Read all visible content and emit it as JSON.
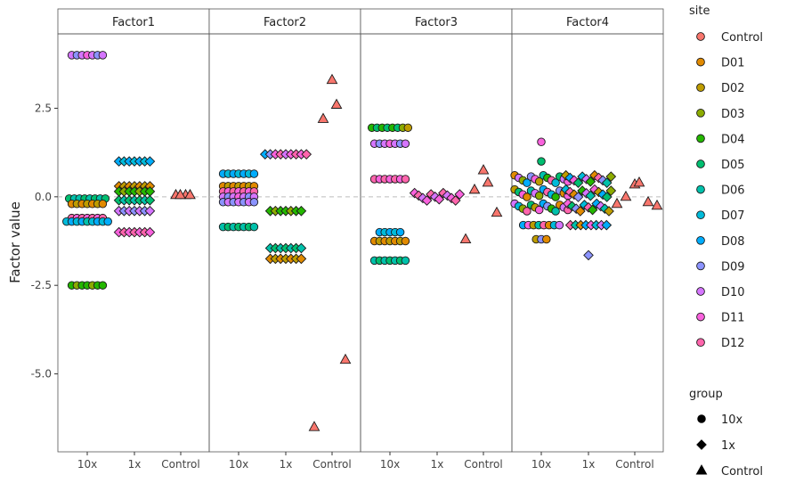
{
  "chart_data": {
    "type": "scatter",
    "ylabel": "Factor value",
    "ylim": [
      -7.2,
      4.6
    ],
    "y_ticks": [
      "2.5",
      "0.0",
      "-2.5",
      "-5.0"
    ],
    "y_tick_values": [
      2.5,
      0.0,
      -2.5,
      -5.0
    ],
    "x_categories": [
      "10x",
      "1x",
      "Control"
    ],
    "facets": [
      "Factor1",
      "Factor2",
      "Factor3",
      "Factor4"
    ],
    "reference_line_y": 0,
    "grid": false,
    "legend_position": "right",
    "legend_site": {
      "title": "site",
      "items": [
        {
          "label": "Control",
          "color": "#F8766D"
        },
        {
          "label": "D01",
          "color": "#E18A00"
        },
        {
          "label": "D02",
          "color": "#BE9C00"
        },
        {
          "label": "D03",
          "color": "#8CAB00"
        },
        {
          "label": "D04",
          "color": "#24B700"
        },
        {
          "label": "D05",
          "color": "#00BE70"
        },
        {
          "label": "D06",
          "color": "#00C1AB"
        },
        {
          "label": "D07",
          "color": "#00BBDA"
        },
        {
          "label": "D08",
          "color": "#00ACFC"
        },
        {
          "label": "D09",
          "color": "#8B93FF"
        },
        {
          "label": "D10",
          "color": "#D575FE"
        },
        {
          "label": "D11",
          "color": "#F962DD"
        },
        {
          "label": "D12",
          "color": "#FF65AC"
        }
      ]
    },
    "legend_group": {
      "title": "group",
      "items": [
        {
          "label": "10x",
          "shape": "circle"
        },
        {
          "label": "1x",
          "shape": "diamond"
        },
        {
          "label": "Control",
          "shape": "triangle"
        }
      ]
    },
    "panels": [
      {
        "factor": "Factor1",
        "clusters": [
          {
            "group": "10x",
            "y": 4.0,
            "sites": [
              "D10",
              "D09",
              "D10",
              "D11",
              "D10",
              "D09",
              "D10"
            ]
          },
          {
            "group": "10x",
            "y": -0.05,
            "sites": [
              "D05",
              "D06",
              "D06",
              "D05",
              "D06",
              "D05",
              "D06",
              "D05"
            ]
          },
          {
            "group": "10x",
            "y": -0.2,
            "sites": [
              "D01",
              "D02",
              "D01",
              "D02",
              "D01",
              "D02",
              "D01"
            ]
          },
          {
            "group": "10x",
            "y": -0.6,
            "sites": [
              "D12",
              "D11",
              "D12",
              "D11",
              "D12",
              "D11",
              "D12"
            ]
          },
          {
            "group": "10x",
            "y": -0.7,
            "sites": [
              "D07",
              "D08",
              "D07",
              "D08",
              "D06",
              "D07",
              "D08",
              "D07",
              "D08"
            ]
          },
          {
            "group": "10x",
            "y": -2.5,
            "sites": [
              "D04",
              "D03",
              "D04",
              "D04",
              "D03",
              "D04",
              "D04"
            ]
          },
          {
            "group": "1x",
            "y": 1.0,
            "sites": [
              "D08",
              "D07",
              "D08",
              "D07",
              "D08",
              "D07",
              "D08"
            ]
          },
          {
            "group": "1x",
            "y": 0.3,
            "sites": [
              "D01",
              "D02",
              "D01",
              "D02",
              "D01",
              "D02",
              "D01"
            ]
          },
          {
            "group": "1x",
            "y": 0.15,
            "sites": [
              "D04",
              "D03",
              "D04",
              "D04",
              "D03",
              "D04",
              "D04"
            ]
          },
          {
            "group": "1x",
            "y": -0.1,
            "sites": [
              "D05",
              "D06",
              "D05",
              "D06",
              "D05",
              "D06",
              "D05"
            ]
          },
          {
            "group": "1x",
            "y": -0.4,
            "sites": [
              "D10",
              "D09",
              "D10",
              "D09",
              "D10",
              "D09",
              "D10"
            ]
          },
          {
            "group": "1x",
            "y": -1.0,
            "sites": [
              "D11",
              "D12",
              "D11",
              "D12",
              "D11",
              "D12",
              "D11"
            ]
          },
          {
            "group": "Control",
            "y": 0.05,
            "sites": [
              "Control",
              "Control"
            ]
          },
          {
            "group": "Control",
            "y": 0.05,
            "sites": [
              "Control",
              "Control"
            ]
          }
        ]
      },
      {
        "factor": "Factor2",
        "clusters": [
          {
            "group": "10x",
            "y": 0.65,
            "sites": [
              "D08",
              "D07",
              "D08",
              "D07",
              "D08",
              "D07",
              "D08"
            ]
          },
          {
            "group": "10x",
            "y": 0.3,
            "sites": [
              "D01",
              "D02",
              "D01",
              "D02",
              "D01",
              "D02",
              "D01"
            ]
          },
          {
            "group": "10x",
            "y": 0.15,
            "sites": [
              "D12",
              "D11",
              "D12",
              "D11",
              "D12",
              "D11",
              "D12"
            ]
          },
          {
            "group": "10x",
            "y": 0.0,
            "sites": [
              "D10",
              "D09",
              "D10",
              "D11",
              "D10",
              "D09",
              "D10"
            ]
          },
          {
            "group": "10x",
            "y": -0.15,
            "sites": [
              "D09",
              "D10",
              "D09",
              "D10",
              "D09",
              "D10",
              "D09"
            ]
          },
          {
            "group": "10x",
            "y": -0.85,
            "sites": [
              "D06",
              "D05",
              "D06",
              "D05",
              "D06",
              "D05",
              "D06"
            ]
          },
          {
            "group": "1x",
            "y": 1.2,
            "sites": [
              "D08",
              "D09",
              "D11",
              "D12",
              "D10",
              "D11",
              "D12",
              "D11",
              "D12"
            ]
          },
          {
            "group": "1x",
            "y": -0.4,
            "sites": [
              "D04",
              "D03",
              "D04",
              "D04",
              "D03",
              "D04",
              "D04"
            ]
          },
          {
            "group": "1x",
            "y": -1.45,
            "sites": [
              "D06",
              "D05",
              "D06",
              "D05",
              "D06",
              "D05",
              "D06"
            ]
          },
          {
            "group": "1x",
            "y": -1.75,
            "sites": [
              "D01",
              "D02",
              "D01",
              "D02",
              "D01",
              "D02",
              "D01"
            ]
          },
          {
            "group": "Control",
            "y": 3.3,
            "sites": [
              "Control"
            ]
          },
          {
            "group": "Control",
            "y": 2.6,
            "sites": [
              "Control"
            ]
          },
          {
            "group": "Control",
            "y": 2.2,
            "sites": [
              "Control"
            ]
          },
          {
            "group": "Control",
            "y": -4.6,
            "sites": [
              "Control"
            ]
          },
          {
            "group": "Control",
            "y": -6.5,
            "sites": [
              "Control"
            ]
          }
        ]
      },
      {
        "factor": "Factor3",
        "clusters": [
          {
            "group": "10x",
            "y": 1.95,
            "sites": [
              "D04",
              "D05",
              "D04",
              "D05",
              "D04",
              "D05",
              "D03",
              "D02"
            ]
          },
          {
            "group": "10x",
            "y": 1.5,
            "sites": [
              "D10",
              "D09",
              "D10",
              "D11",
              "D10",
              "D09",
              "D10"
            ]
          },
          {
            "group": "10x",
            "y": 0.5,
            "sites": [
              "D12",
              "D11",
              "D12",
              "D11",
              "D12",
              "D11",
              "D12"
            ]
          },
          {
            "group": "10x",
            "y": -1.0,
            "sites": [
              "D08",
              "D07",
              "D08",
              "D07",
              "D08"
            ]
          },
          {
            "group": "10x",
            "y": -1.25,
            "sites": [
              "D01",
              "D02",
              "D01",
              "D02",
              "D01",
              "D02",
              "D01"
            ]
          },
          {
            "group": "10x",
            "y": -1.8,
            "sites": [
              "D06",
              "D05",
              "D06",
              "D05",
              "D06",
              "D05",
              "D06"
            ]
          },
          {
            "group": "1x",
            "y": 0.0,
            "sites": [
              "D11",
              "D12",
              "D10",
              "D11",
              "D12",
              "D10",
              "D11",
              "D12",
              "D10",
              "D11",
              "D12",
              "D11"
            ]
          },
          {
            "group": "Control",
            "y": 0.75,
            "sites": [
              "Control"
            ]
          },
          {
            "group": "Control",
            "y": 0.4,
            "sites": [
              "Control"
            ]
          },
          {
            "group": "Control",
            "y": 0.2,
            "sites": [
              "Control"
            ]
          },
          {
            "group": "Control",
            "y": -0.45,
            "sites": [
              "Control"
            ]
          },
          {
            "group": "Control",
            "y": -1.2,
            "sites": [
              "Control"
            ]
          }
        ]
      },
      {
        "factor": "Factor4",
        "clusters": [
          {
            "group": "10x",
            "y": 1.55,
            "sites": [
              "D11"
            ]
          },
          {
            "group": "10x",
            "y": 1.0,
            "sites": [
              "D05"
            ]
          },
          {
            "group": "10x",
            "y": 0.5,
            "sites": [
              "D01",
              "D10",
              "D03",
              "D08",
              "D09",
              "D11",
              "D02",
              "D06",
              "D04",
              "D12",
              "D07",
              "D05",
              "D10",
              "D11"
            ]
          },
          {
            "group": "10x",
            "y": 0.1,
            "sites": [
              "D02",
              "D05",
              "D11",
              "D01",
              "D06",
              "D10",
              "D03",
              "D08",
              "D12",
              "D07",
              "D04",
              "D09",
              "D01",
              "D11"
            ]
          },
          {
            "group": "10x",
            "y": -0.3,
            "sites": [
              "D10",
              "D07",
              "D03",
              "D12",
              "D05",
              "D02",
              "D11",
              "D08",
              "D09",
              "D04",
              "D06",
              "D01",
              "D10",
              "D12"
            ]
          },
          {
            "group": "10x",
            "y": -0.8,
            "sites": [
              "D08",
              "D11",
              "D02",
              "D06",
              "D12",
              "D01",
              "D07",
              "D10"
            ]
          },
          {
            "group": "10x",
            "y": -1.2,
            "sites": [
              "D02",
              "D09",
              "D01"
            ]
          },
          {
            "group": "1x",
            "y": 0.5,
            "sites": [
              "D02",
              "D08",
              "D11",
              "D05",
              "D07",
              "D10",
              "D04",
              "D01",
              "D12",
              "D09",
              "D06",
              "D03"
            ]
          },
          {
            "group": "1x",
            "y": 0.1,
            "sites": [
              "D07",
              "D12",
              "D01",
              "D09",
              "D04",
              "D10",
              "D06",
              "D11",
              "D02",
              "D08",
              "D05",
              "D03"
            ]
          },
          {
            "group": "1x",
            "y": -0.3,
            "sites": [
              "D11",
              "D05",
              "D09",
              "D01",
              "D07",
              "D12",
              "D04",
              "D08",
              "D10",
              "D06",
              "D02"
            ]
          },
          {
            "group": "1x",
            "y": -0.8,
            "sites": [
              "D12",
              "D06",
              "D01",
              "D08",
              "D11",
              "D07",
              "D10",
              "D08"
            ]
          },
          {
            "group": "1x",
            "y": -1.65,
            "sites": [
              "D09"
            ]
          },
          {
            "group": "Control",
            "y": 0.35,
            "sites": [
              "Control"
            ]
          },
          {
            "group": "Control",
            "y": 0.4,
            "sites": [
              "Control"
            ]
          },
          {
            "group": "Control",
            "y": 0.0,
            "sites": [
              "Control"
            ]
          },
          {
            "group": "Control",
            "y": -0.15,
            "sites": [
              "Control"
            ]
          },
          {
            "group": "Control",
            "y": -0.2,
            "sites": [
              "Control"
            ]
          },
          {
            "group": "Control",
            "y": -0.25,
            "sites": [
              "Control"
            ]
          }
        ]
      }
    ]
  }
}
